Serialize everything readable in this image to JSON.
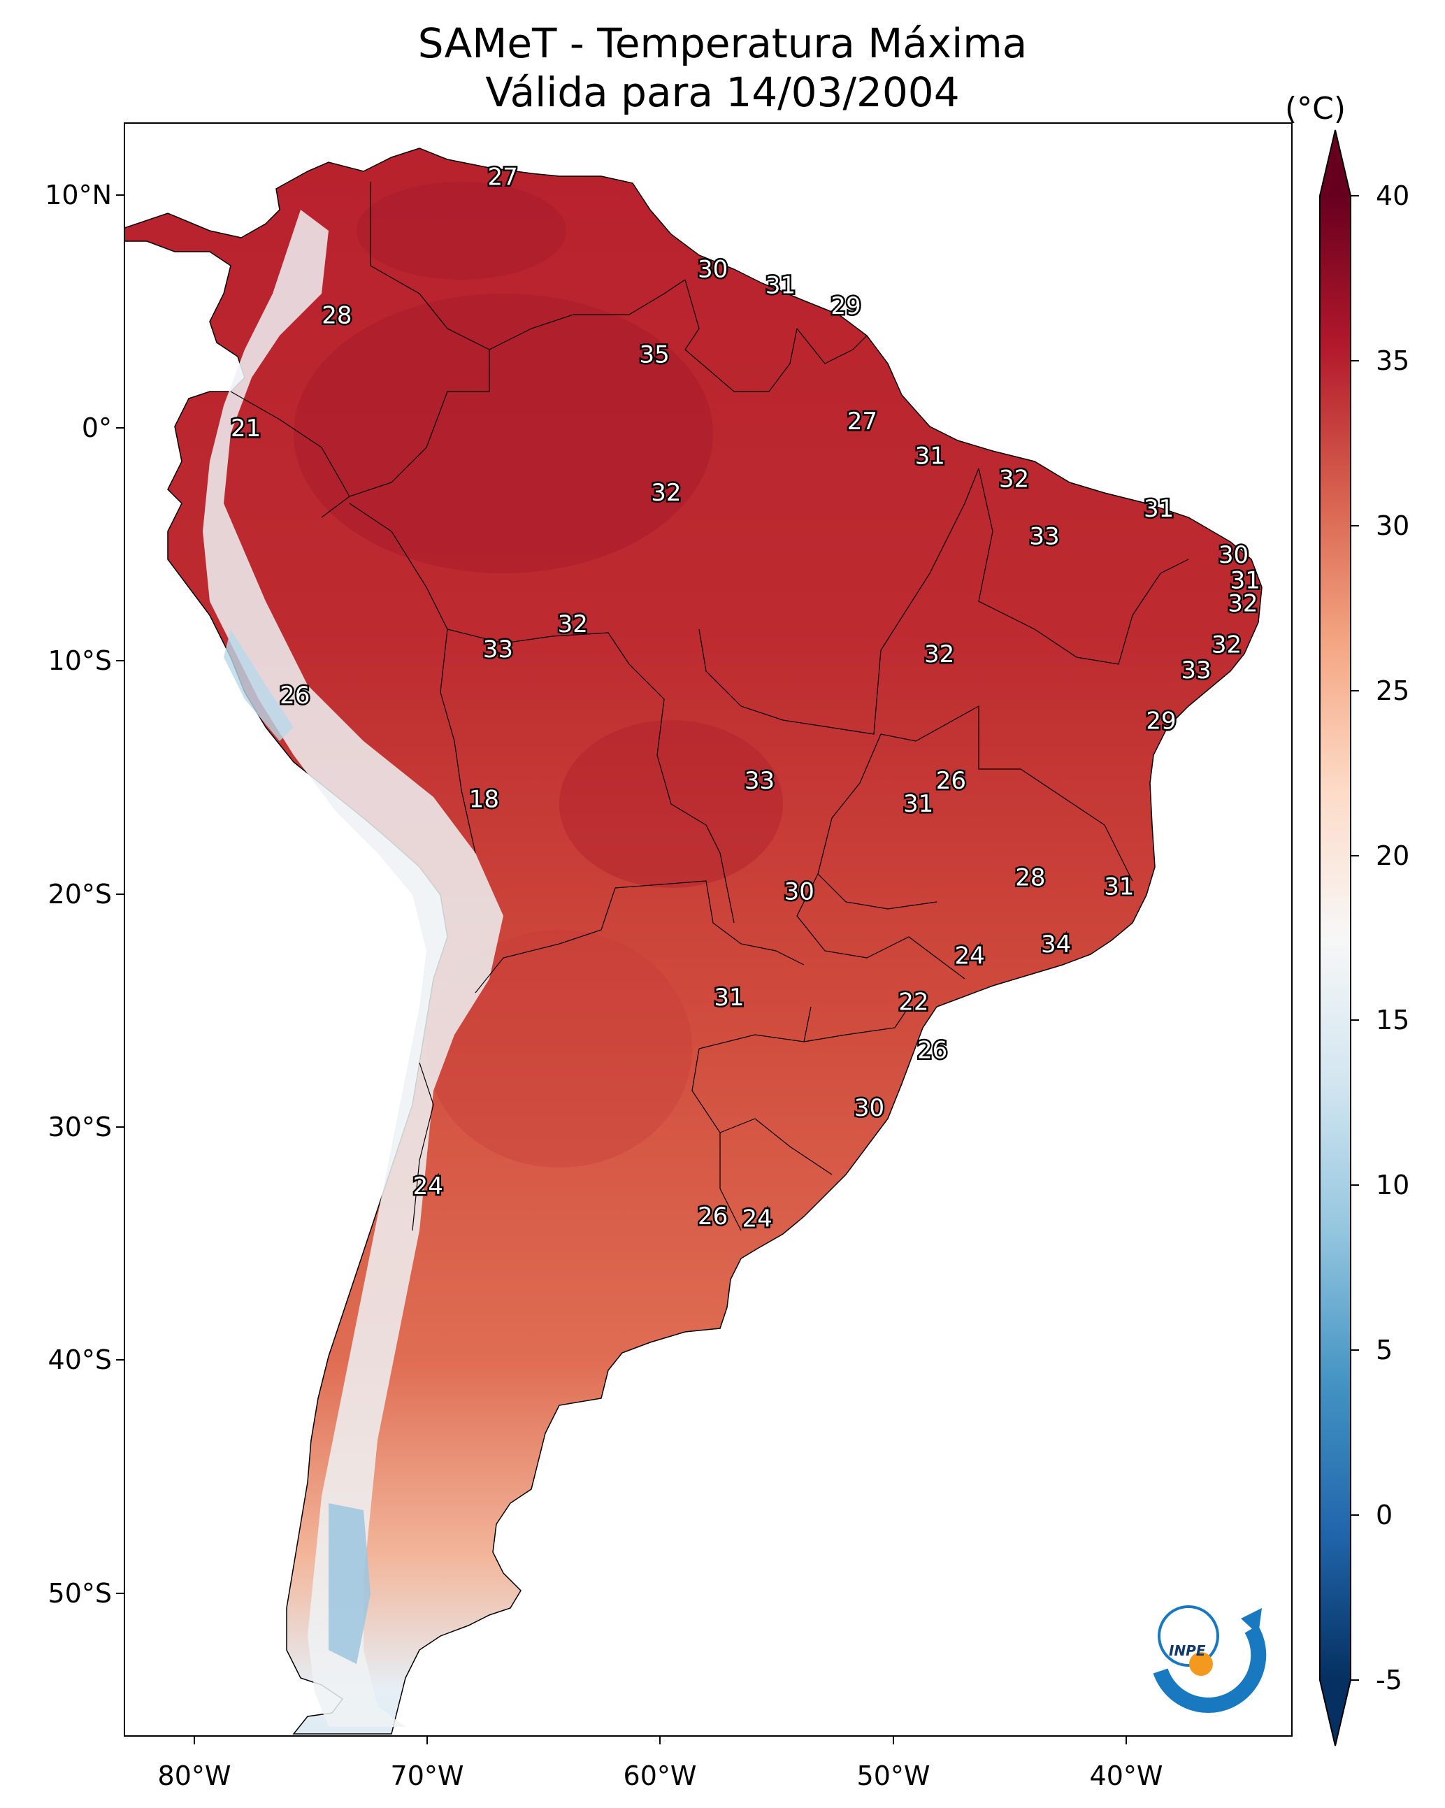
{
  "title": {
    "line1": "SAMeT - Temperatura Máxima",
    "line2": "Válida para 14/03/2004"
  },
  "colorbar": {
    "unit": "(°C)",
    "ticks": [
      "40",
      "35",
      "30",
      "25",
      "20",
      "15",
      "10",
      "5",
      "0",
      "-5"
    ],
    "min": -5,
    "max": 40,
    "colormap": "RdBu_r",
    "extend": "both"
  },
  "axes": {
    "lon_ticks": [
      "80°W",
      "70°W",
      "60°W",
      "50°W",
      "40°W"
    ],
    "lat_ticks": [
      "10°N",
      "0°",
      "10°S",
      "20°S",
      "30°S",
      "40°S",
      "50°S"
    ],
    "lon_range": [
      -83,
      -33
    ],
    "lat_range": [
      -57,
      13
    ]
  },
  "logo": {
    "text": "INPE",
    "arc_color": "#1878c0",
    "dot_color": "#f39a1e"
  },
  "colors": {
    "ocean": "#ffffff",
    "hot": "#b8212d",
    "cool": "#f4f4f4",
    "cold": "#9cc6e0"
  },
  "map_labels": [
    {
      "value": "27",
      "lon": -66.8,
      "lat": 10.6
    },
    {
      "value": "30",
      "lon": -57.8,
      "lat": 6.6
    },
    {
      "value": "31",
      "lon": -54.9,
      "lat": 5.9
    },
    {
      "value": "29",
      "lon": -52.1,
      "lat": 5.0
    },
    {
      "value": "28",
      "lon": -73.9,
      "lat": 4.6
    },
    {
      "value": "35",
      "lon": -60.3,
      "lat": 2.9
    },
    {
      "value": "27",
      "lon": -51.4,
      "lat": 0.0
    },
    {
      "value": "21",
      "lon": -77.8,
      "lat": -0.3
    },
    {
      "value": "31",
      "lon": -48.5,
      "lat": -1.5
    },
    {
      "value": "32",
      "lon": -44.9,
      "lat": -2.5
    },
    {
      "value": "32",
      "lon": -59.8,
      "lat": -3.1
    },
    {
      "value": "31",
      "lon": -38.7,
      "lat": -3.8
    },
    {
      "value": "33",
      "lon": -43.6,
      "lat": -5.0
    },
    {
      "value": "30",
      "lon": -35.5,
      "lat": -5.8
    },
    {
      "value": "31",
      "lon": -35.0,
      "lat": -6.9
    },
    {
      "value": "32",
      "lon": -35.1,
      "lat": -7.9
    },
    {
      "value": "32",
      "lon": -63.8,
      "lat": -8.8
    },
    {
      "value": "32",
      "lon": -35.8,
      "lat": -9.7
    },
    {
      "value": "33",
      "lon": -67.0,
      "lat": -9.9
    },
    {
      "value": "32",
      "lon": -48.1,
      "lat": -10.1
    },
    {
      "value": "33",
      "lon": -37.1,
      "lat": -10.8
    },
    {
      "value": "26",
      "lon": -75.7,
      "lat": -11.9
    },
    {
      "value": "29",
      "lon": -38.6,
      "lat": -13.0
    },
    {
      "value": "33",
      "lon": -55.8,
      "lat": -15.6
    },
    {
      "value": "26",
      "lon": -47.6,
      "lat": -15.6
    },
    {
      "value": "31",
      "lon": -49.0,
      "lat": -16.6
    },
    {
      "value": "18",
      "lon": -67.6,
      "lat": -16.4
    },
    {
      "value": "28",
      "lon": -44.2,
      "lat": -19.8
    },
    {
      "value": "31",
      "lon": -40.4,
      "lat": -20.2
    },
    {
      "value": "30",
      "lon": -54.1,
      "lat": -20.4
    },
    {
      "value": "34",
      "lon": -43.1,
      "lat": -22.7
    },
    {
      "value": "24",
      "lon": -46.8,
      "lat": -23.2
    },
    {
      "value": "22",
      "lon": -49.2,
      "lat": -25.2
    },
    {
      "value": "31",
      "lon": -57.1,
      "lat": -25.0
    },
    {
      "value": "26",
      "lon": -48.4,
      "lat": -27.3
    },
    {
      "value": "30",
      "lon": -51.1,
      "lat": -29.8
    },
    {
      "value": "24",
      "lon": -70.0,
      "lat": -33.2
    },
    {
      "value": "26",
      "lon": -57.8,
      "lat": -34.5
    },
    {
      "value": "24",
      "lon": -55.9,
      "lat": -34.6
    }
  ]
}
